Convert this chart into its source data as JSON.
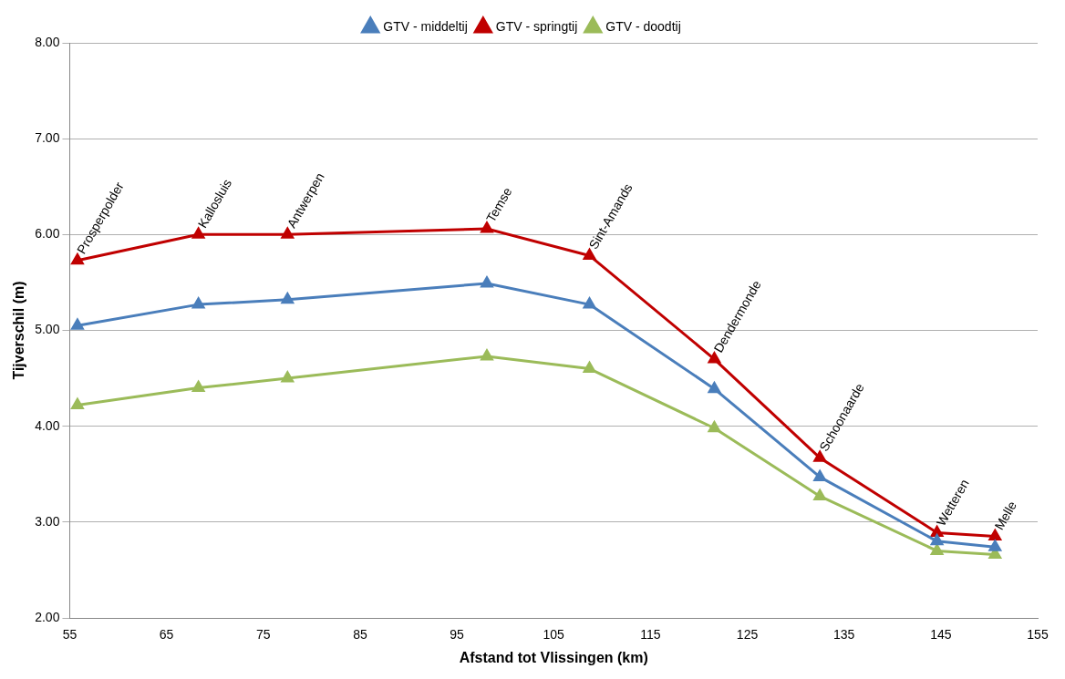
{
  "chart_data": {
    "type": "line",
    "xlabel": "Afstand tot Vlissingen (km)",
    "ylabel": "Tijverschil (m)",
    "x": [
      55.8,
      68.3,
      77.5,
      98.1,
      108.7,
      121.6,
      132.5,
      144.6,
      150.6
    ],
    "series": [
      {
        "name": "GTV - middeltij",
        "color": "#4a7ebb",
        "values": [
          5.05,
          5.27,
          5.32,
          5.49,
          5.27,
          4.39,
          3.47,
          2.8,
          2.74
        ]
      },
      {
        "name": "GTV - springtij",
        "color": "#c00000",
        "values": [
          5.73,
          6.0,
          6.0,
          6.06,
          5.78,
          4.7,
          3.67,
          2.89,
          2.85
        ]
      },
      {
        "name": "GTV - doodtij",
        "color": "#9bbb59",
        "values": [
          4.22,
          4.4,
          4.5,
          4.73,
          4.6,
          3.98,
          3.27,
          2.7,
          2.66
        ]
      }
    ],
    "annotations": [
      {
        "text": "Prosperpolder",
        "x": 55.8,
        "y": 5.73
      },
      {
        "text": "Kallosluis",
        "x": 68.3,
        "y": 6.0
      },
      {
        "text": "Antwerpen",
        "x": 77.5,
        "y": 6.0
      },
      {
        "text": "Temse",
        "x": 98.1,
        "y": 6.06
      },
      {
        "text": "Sint-Amands",
        "x": 108.7,
        "y": 5.78
      },
      {
        "text": "Dendermonde",
        "x": 121.6,
        "y": 4.7
      },
      {
        "text": "Schoonaarde",
        "x": 132.5,
        "y": 3.67
      },
      {
        "text": "Wetteren",
        "x": 144.6,
        "y": 2.89
      },
      {
        "text": "Melle",
        "x": 150.6,
        "y": 2.85
      }
    ],
    "xlim": [
      55,
      155
    ],
    "xticks": [
      55,
      65,
      75,
      85,
      95,
      105,
      115,
      125,
      135,
      145,
      155
    ],
    "ylim": [
      2,
      8
    ],
    "yticks": [
      {
        "value": 2,
        "label": "2.00"
      },
      {
        "value": 3,
        "label": "3.00"
      },
      {
        "value": 4,
        "label": "4.00"
      },
      {
        "value": 5,
        "label": "5.00"
      },
      {
        "value": 6,
        "label": "6.00"
      },
      {
        "value": 7,
        "label": "7.00"
      },
      {
        "value": 8,
        "label": "8.00"
      }
    ],
    "grid": "y",
    "legend": "top",
    "marker": "triangle",
    "line_style": "solid"
  }
}
